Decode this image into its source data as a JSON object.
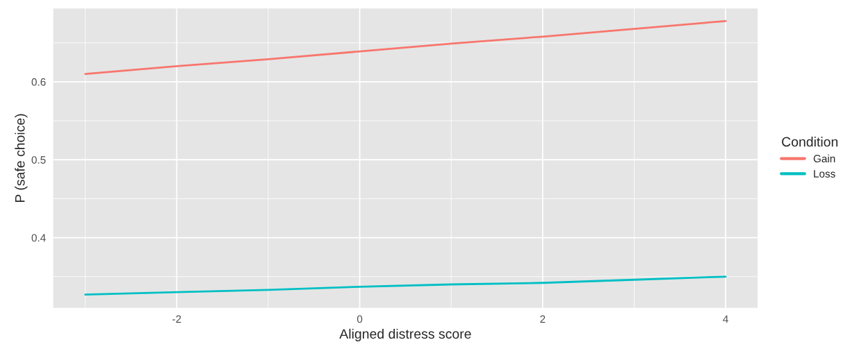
{
  "chart_data": {
    "type": "line",
    "xlabel": "Aligned distress score",
    "ylabel": "P (safe choice)",
    "legend_title": "Condition",
    "x": [
      -3,
      -2,
      -1,
      0,
      1,
      2,
      3,
      4
    ],
    "series": [
      {
        "name": "Gain",
        "color": "#f8766d",
        "values": [
          0.61,
          0.62,
          0.629,
          0.639,
          0.649,
          0.658,
          0.668,
          0.678
        ]
      },
      {
        "name": "Loss",
        "color": "#00bfc4",
        "values": [
          0.327,
          0.33,
          0.333,
          0.337,
          0.34,
          0.342,
          0.346,
          0.35
        ]
      }
    ],
    "xlim": [
      -3.35,
      4.35
    ],
    "ylim": [
      0.31,
      0.694
    ],
    "xticks": [
      {
        "value": -2,
        "label": "-2"
      },
      0,
      2,
      4
    ],
    "yticks": [
      0.4,
      0.5,
      0.6
    ],
    "grid": true,
    "legend": "right",
    "line_style": "solid",
    "marker": "none"
  }
}
